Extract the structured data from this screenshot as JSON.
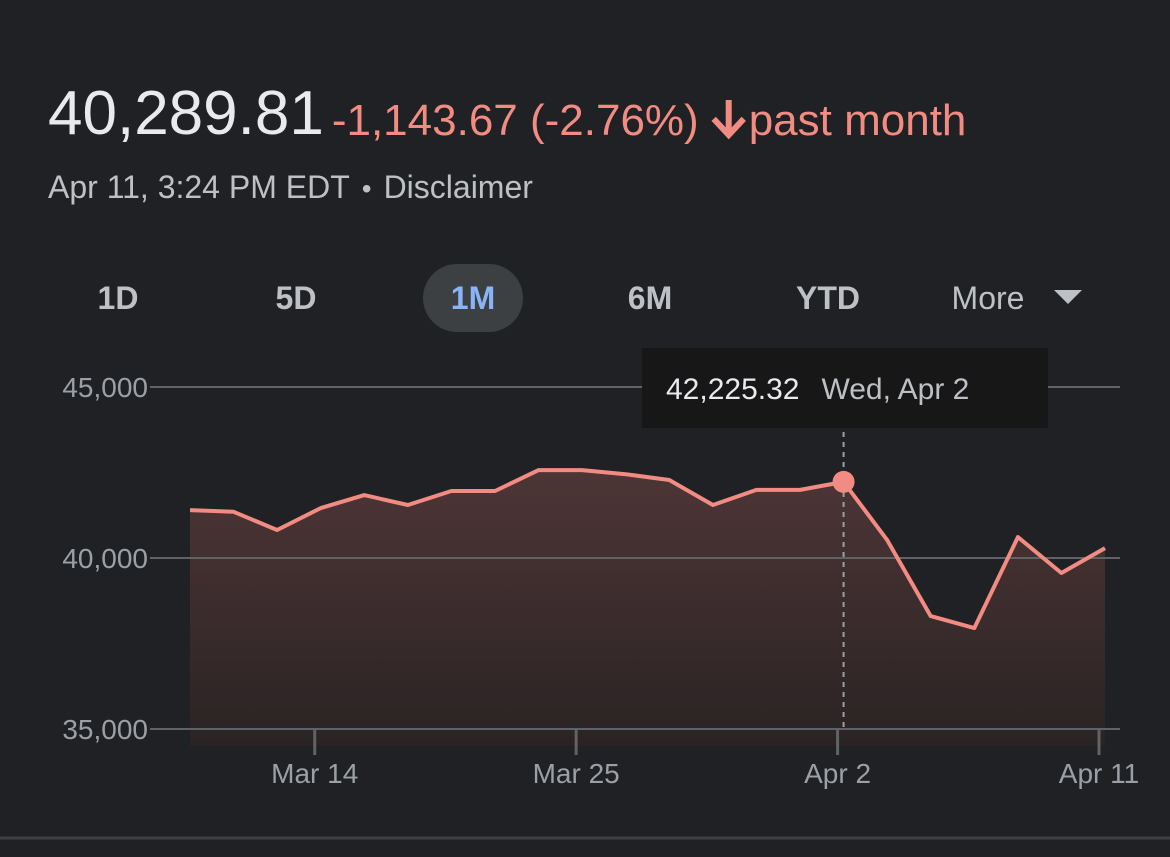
{
  "header": {
    "price": "40,289.81",
    "change": "-1,143.67 (-2.76%)",
    "period": "past month",
    "timestamp": "Apr 11, 3:24 PM EDT",
    "separator": "•",
    "disclaimer": "Disclaimer"
  },
  "tabs": [
    "1D",
    "5D",
    "1M",
    "6M",
    "YTD",
    "More"
  ],
  "active_tab": "1M",
  "chart_data": {
    "type": "area",
    "categories": [
      null,
      null,
      null,
      "Mar 14",
      null,
      null,
      null,
      null,
      null,
      "Mar 25",
      null,
      null,
      null,
      null,
      null,
      "Apr 2",
      null,
      null,
      null,
      null,
      null,
      "Apr 11"
    ],
    "series": [
      {
        "color": "#f28b82",
        "values": [
          41400,
          41350,
          40820,
          41460,
          41840,
          41550,
          41960,
          41960,
          42570,
          42570,
          42450,
          42280,
          41550,
          41990,
          41990,
          42225.32,
          40530,
          38300,
          37950,
          40610,
          39560,
          40289.81
        ]
      }
    ],
    "ylim": [
      34500,
      46000
    ],
    "yticks": [
      {
        "value": 35000,
        "label": "35,000"
      },
      {
        "value": 40000,
        "label": "40,000"
      },
      {
        "value": 45000,
        "label": "45,000"
      }
    ],
    "grid": true,
    "tooltip": {
      "value_label": "42,225.32",
      "date": "Wed, Apr 2"
    }
  }
}
